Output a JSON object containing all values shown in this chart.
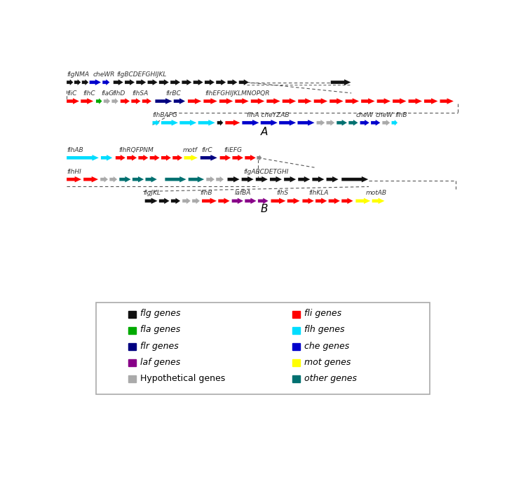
{
  "colors": {
    "BLACK": "#111111",
    "RED": "#ff0000",
    "BLUE": "#0000cc",
    "GREEN": "#00aa00",
    "CYAN": "#00ddff",
    "NAVY": "#000080",
    "GRAY": "#aaaaaa",
    "TEAL": "#007070",
    "PURPLE": "#880088",
    "YELLOW": "#ffff00"
  },
  "legend_left": [
    {
      "label": "flg genes",
      "color": "#111111",
      "italic": true
    },
    {
      "label": "fla genes",
      "color": "#00aa00",
      "italic": true
    },
    {
      "label": "flr genes",
      "color": "#000080",
      "italic": true
    },
    {
      "label": "laf genes",
      "color": "#880088",
      "italic": true
    },
    {
      "label": "Hypothetical genes",
      "color": "#aaaaaa",
      "italic": false
    }
  ],
  "legend_right": [
    {
      "label": "fli genes",
      "color": "#ff0000",
      "italic": true
    },
    {
      "label": "flh genes",
      "color": "#00ddff",
      "italic": true
    },
    {
      "label": "che genes",
      "color": "#0000cc",
      "italic": true
    },
    {
      "label": "mot genes",
      "color": "#ffff00",
      "italic": true
    },
    {
      "label": "other genes",
      "color": "#007070",
      "italic": true
    }
  ],
  "section_A_label": "A",
  "section_B_label": "B"
}
